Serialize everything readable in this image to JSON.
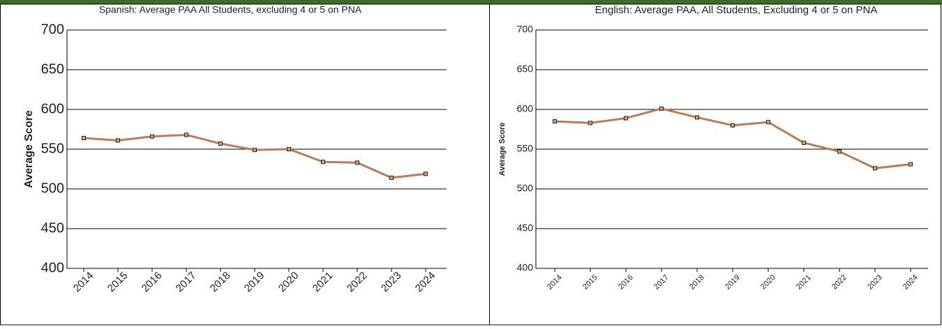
{
  "chart_data": [
    {
      "type": "line",
      "title": "Spanish: Average PAA All Students, excluding 4 or 5 on PNA",
      "y_label": "Average Score",
      "categories": [
        "2014",
        "2015",
        "2016",
        "2017",
        "2018",
        "2019",
        "2020",
        "2021",
        "2022",
        "2023",
        "2024"
      ],
      "series": [
        {
          "color": "#c07a52",
          "values": [
            564,
            561,
            566,
            568,
            557,
            549,
            550,
            534,
            533,
            514,
            519
          ]
        }
      ],
      "ylim": [
        400,
        700
      ],
      "yticks": [
        400,
        450,
        500,
        550,
        600,
        650,
        700
      ],
      "grid": true
    },
    {
      "type": "line",
      "title": "English: Average PAA, All Students, Excluding 4 or 5 on PNA",
      "y_label": "Average Score",
      "categories": [
        "2014",
        "2015",
        "2016",
        "2017",
        "2018",
        "2019",
        "2020",
        "2021",
        "2022",
        "2023",
        "2024"
      ],
      "series": [
        {
          "color": "#c07a52",
          "values": [
            585,
            583,
            589,
            601,
            590,
            580,
            584,
            558,
            547,
            526,
            531
          ]
        }
      ],
      "ylim": [
        400,
        700
      ],
      "yticks": [
        400,
        450,
        500,
        550,
        600,
        650,
        700
      ],
      "grid": true
    }
  ]
}
